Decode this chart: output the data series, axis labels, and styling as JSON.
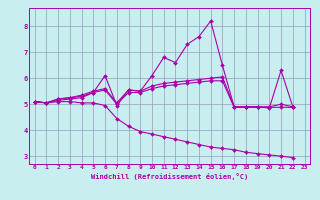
{
  "xlabel": "Windchill (Refroidissement éolien,°C)",
  "bg_color": "#c8eef0",
  "line_color": "#aa00aa",
  "grid_color": "#9999bb",
  "xlim": [
    -0.5,
    23.5
  ],
  "ylim": [
    2.7,
    8.7
  ],
  "xticks": [
    0,
    1,
    2,
    3,
    4,
    5,
    6,
    7,
    8,
    9,
    10,
    11,
    12,
    13,
    14,
    15,
    16,
    17,
    18,
    19,
    20,
    21,
    22,
    23
  ],
  "yticks": [
    3,
    4,
    5,
    6,
    7,
    8
  ],
  "series": [
    {
      "x": [
        0,
        1,
        2,
        3,
        4,
        5,
        6,
        7,
        8,
        9,
        10,
        11,
        12,
        13,
        14,
        15,
        16,
        17,
        18,
        19,
        20,
        21,
        22
      ],
      "y": [
        5.1,
        5.05,
        5.2,
        5.25,
        5.3,
        5.45,
        6.1,
        4.95,
        5.55,
        5.5,
        6.1,
        6.8,
        6.6,
        7.3,
        7.6,
        8.2,
        6.5,
        4.9,
        4.9,
        4.9,
        4.85,
        6.3,
        4.9
      ]
    },
    {
      "x": [
        0,
        1,
        2,
        3,
        4,
        5,
        6,
        7,
        8,
        9,
        10,
        11,
        12,
        13,
        14,
        15,
        16,
        17,
        18,
        19,
        20,
        21,
        22
      ],
      "y": [
        5.1,
        5.05,
        5.2,
        5.25,
        5.35,
        5.5,
        5.6,
        5.05,
        5.55,
        5.5,
        5.7,
        5.8,
        5.85,
        5.9,
        5.95,
        6.0,
        6.05,
        4.9,
        4.9,
        4.9,
        4.9,
        5.0,
        4.9
      ]
    },
    {
      "x": [
        0,
        1,
        2,
        3,
        4,
        5,
        6,
        7,
        8,
        9,
        10,
        11,
        12,
        13,
        14,
        15,
        16,
        17,
        18,
        19,
        20,
        21,
        22
      ],
      "y": [
        5.1,
        5.05,
        5.15,
        5.2,
        5.25,
        5.45,
        5.55,
        5.0,
        5.45,
        5.45,
        5.6,
        5.7,
        5.75,
        5.8,
        5.85,
        5.9,
        5.9,
        4.88,
        4.88,
        4.88,
        4.88,
        4.88,
        4.88
      ]
    },
    {
      "x": [
        0,
        1,
        2,
        3,
        4,
        5,
        6,
        7,
        8,
        9,
        10,
        11,
        12,
        13,
        14,
        15,
        16,
        17,
        18,
        19,
        20,
        21,
        22
      ],
      "y": [
        5.1,
        5.05,
        5.1,
        5.1,
        5.05,
        5.05,
        4.95,
        4.45,
        4.15,
        3.95,
        3.85,
        3.75,
        3.65,
        3.55,
        3.45,
        3.35,
        3.3,
        3.25,
        3.15,
        3.1,
        3.05,
        3.0,
        2.95
      ]
    }
  ]
}
